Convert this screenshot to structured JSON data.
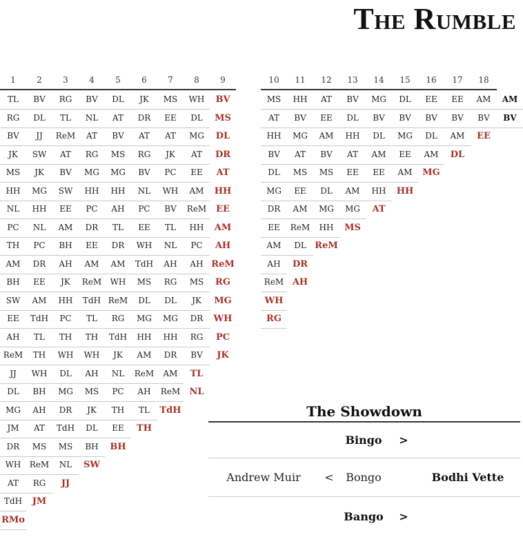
{
  "title": "The Rumble",
  "rounds_left": [
    "1",
    "2",
    "3",
    "4",
    "5",
    "6",
    "7",
    "8",
    "9"
  ],
  "rounds_right": [
    "10",
    "11",
    "12",
    "13",
    "14",
    "15",
    "16",
    "17",
    "18"
  ],
  "rows_left": [
    [
      "TL",
      "BV",
      "RG",
      "BV",
      "DL",
      "JK",
      "MS",
      "WH",
      "BV"
    ],
    [
      "RG",
      "DL",
      "TL",
      "NL",
      "AT",
      "DR",
      "EE",
      "DL",
      "MS"
    ],
    [
      "BV",
      "JJ",
      "ReM",
      "AT",
      "BV",
      "AT",
      "AT",
      "MG",
      "DL"
    ],
    [
      "JK",
      "SW",
      "AT",
      "RG",
      "MS",
      "RG",
      "JK",
      "AT",
      "DR"
    ],
    [
      "MS",
      "JK",
      "BV",
      "MG",
      "MG",
      "BV",
      "PC",
      "EE",
      "AT"
    ],
    [
      "HH",
      "MG",
      "SW",
      "HH",
      "HH",
      "NL",
      "WH",
      "AM",
      "HH"
    ],
    [
      "NL",
      "HH",
      "EE",
      "PC",
      "AH",
      "PC",
      "BV",
      "ReM",
      "EE"
    ],
    [
      "PC",
      "NL",
      "AM",
      "DR",
      "TL",
      "EE",
      "TL",
      "HH",
      "AM"
    ],
    [
      "TH",
      "PC",
      "BH",
      "EE",
      "DR",
      "WH",
      "NL",
      "PC",
      "AH"
    ],
    [
      "AM",
      "DR",
      "AH",
      "AM",
      "AM",
      "TdH",
      "AH",
      "AH",
      "ReM"
    ],
    [
      "BH",
      "EE",
      "JK",
      "ReM",
      "WH",
      "MS",
      "RG",
      "MS",
      "RG"
    ],
    [
      "SW",
      "AM",
      "HH",
      "TdH",
      "ReM",
      "DL",
      "DL",
      "JK",
      "MG"
    ],
    [
      "EE",
      "TdH",
      "PC",
      "TL",
      "RG",
      "MG",
      "MG",
      "DR",
      "WH"
    ],
    [
      "AH",
      "TL",
      "TH",
      "TH",
      "TdH",
      "HH",
      "HH",
      "RG",
      "PC"
    ],
    [
      "ReM",
      "TH",
      "WH",
      "WH",
      "JK",
      "AM",
      "DR",
      "BV",
      "JK"
    ],
    [
      "JJ",
      "WH",
      "DL",
      "AH",
      "NL",
      "ReM",
      "AM",
      "TL"
    ],
    [
      "DL",
      "BH",
      "MG",
      "MS",
      "PC",
      "AH",
      "ReM",
      "NL"
    ],
    [
      "MG",
      "AH",
      "DR",
      "JK",
      "TH",
      "TL",
      "TdH"
    ],
    [
      "JM",
      "AT",
      "TdH",
      "DL",
      "EE",
      "TH"
    ],
    [
      "DR",
      "MS",
      "MS",
      "BH",
      "BH"
    ],
    [
      "WH",
      "ReM",
      "NL",
      "SW"
    ],
    [
      "AT",
      "RG",
      "JJ"
    ],
    [
      "TdH",
      "JM"
    ],
    [
      "RMo"
    ]
  ],
  "rows_right": [
    [
      "MS",
      "HH",
      "AT",
      "BV",
      "MG",
      "DL",
      "EE",
      "EE",
      "AM",
      "AM"
    ],
    [
      "AT",
      "BV",
      "EE",
      "DL",
      "BV",
      "BV",
      "BV",
      "BV",
      "BV",
      "BV"
    ],
    [
      "HH",
      "MG",
      "AM",
      "HH",
      "DL",
      "MG",
      "DL",
      "AM",
      "EE"
    ],
    [
      "BV",
      "AT",
      "BV",
      "AT",
      "AM",
      "EE",
      "AM",
      "DL"
    ],
    [
      "DL",
      "MS",
      "MS",
      "EE",
      "EE",
      "AM",
      "MG"
    ],
    [
      "MG",
      "EE",
      "DL",
      "AM",
      "HH",
      "HH"
    ],
    [
      "DR",
      "AM",
      "MG",
      "MG",
      "AT"
    ],
    [
      "EE",
      "ReM",
      "HH",
      "MS"
    ],
    [
      "AM",
      "DL",
      "ReM"
    ],
    [
      "AH",
      "DR"
    ],
    [
      "ReM",
      "AH"
    ],
    [
      "WH"
    ],
    [
      "RG"
    ]
  ],
  "showdown": {
    "title": "The Showdown",
    "top": {
      "name": "Bingo",
      "arrow": ">"
    },
    "middle": {
      "left": "Andrew Muir",
      "op": "<",
      "name": "Bongo",
      "right": "Bodhi Vette"
    },
    "bottom": {
      "name": "Bango",
      "arrow": ">"
    }
  },
  "colors": {
    "eliminated": "#a4322a",
    "text": "#222222"
  }
}
